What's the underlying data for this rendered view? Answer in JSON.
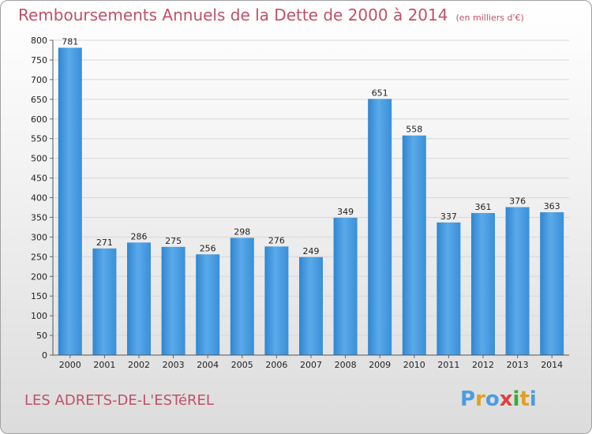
{
  "chart_data": {
    "type": "bar",
    "title": "Remboursements Annuels de la Dette de 2000 à 2014",
    "subtitle": "(en milliers d'€)",
    "categories": [
      "2000",
      "2001",
      "2002",
      "2003",
      "2004",
      "2005",
      "2006",
      "2007",
      "2008",
      "2009",
      "2010",
      "2011",
      "2012",
      "2013",
      "2014"
    ],
    "values": [
      781,
      271,
      286,
      275,
      256,
      298,
      276,
      249,
      349,
      651,
      558,
      337,
      361,
      376,
      363
    ],
    "ylim": [
      0,
      800
    ],
    "yticks": [
      0,
      50,
      100,
      150,
      200,
      250,
      300,
      350,
      400,
      450,
      500,
      550,
      600,
      650,
      700,
      750,
      800
    ],
    "grid": true,
    "bar_color": "#4a9de0"
  },
  "footer": {
    "commune": "LES ADRETS-DE-L'ESTéREL",
    "brand": "Proxiti"
  },
  "colors": {
    "title": "#c0506a",
    "brand_letters": [
      "#4a9de0",
      "#e0a020",
      "#4a9de0",
      "#e04040",
      "#3aaa3a",
      "#e0a020",
      "#4a9de0"
    ]
  }
}
